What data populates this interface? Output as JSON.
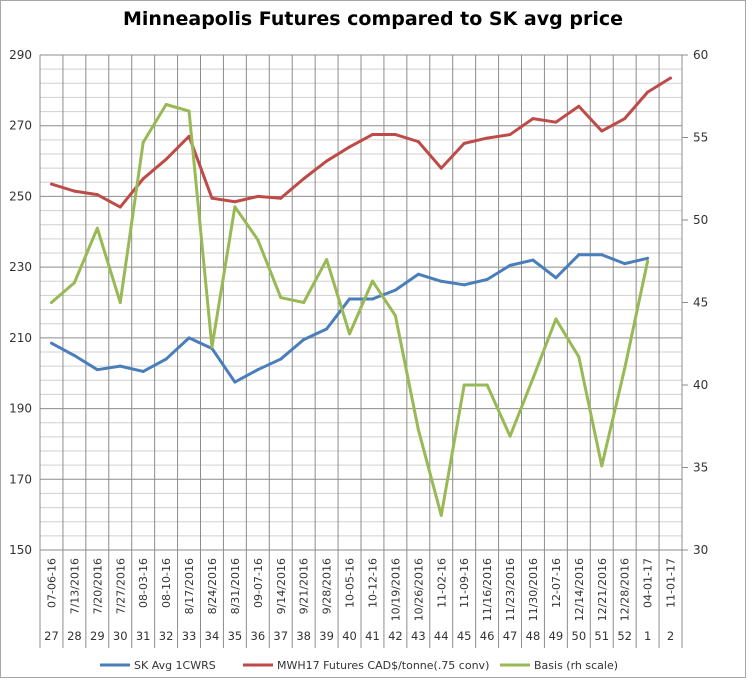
{
  "chart_data": {
    "type": "line",
    "title": "Minneapolis Futures compared to SK avg price",
    "categories": [
      "07-06-16",
      "7/13/2016",
      "7/20/2016",
      "7/27/2016",
      "08-03-16",
      "08-10-16",
      "8/17/2016",
      "8/24/2016",
      "8/31/2016",
      "09-07-16",
      "9/14/2016",
      "9/21/2016",
      "9/28/2016",
      "10-05-16",
      "10-12-16",
      "10/19/2016",
      "10/26/2016",
      "11-02-16",
      "11-09-16",
      "11/16/2016",
      "11/23/2016",
      "11/30/2016",
      "12-07-16",
      "12/14/2016",
      "12/21/2016",
      "12/28/2016",
      "04-01-17",
      "11-01-17"
    ],
    "week_numbers": [
      "27",
      "28",
      "29",
      "30",
      "31",
      "32",
      "33",
      "34",
      "35",
      "36",
      "37",
      "38",
      "39",
      "40",
      "41",
      "42",
      "43",
      "44",
      "45",
      "46",
      "47",
      "48",
      "49",
      "50",
      "51",
      "52",
      "1",
      "2"
    ],
    "y_left": {
      "range": [
        150,
        290
      ],
      "ticks": [
        "150",
        "170",
        "190",
        "210",
        "230",
        "250",
        "270",
        "290"
      ]
    },
    "y_right": {
      "range": [
        30,
        60
      ],
      "ticks": [
        "30",
        "35",
        "40",
        "45",
        "50",
        "55",
        "60"
      ]
    },
    "grid": true,
    "legend_position": "bottom",
    "series": [
      {
        "name": "SK Avg 1CWRS",
        "axis": "left",
        "color": "#4a7ebb",
        "values": [
          208.5,
          205,
          201,
          202,
          200.5,
          204,
          210,
          207,
          197.5,
          201,
          204,
          209.5,
          212.5,
          221,
          221,
          223.5,
          228,
          226,
          225,
          226.5,
          230.5,
          232,
          227,
          233.5,
          233.5,
          231,
          232.5,
          null
        ]
      },
      {
        "name": "MWH17 Futures CAD$/tonne(.75 conv)",
        "axis": "left",
        "color": "#be4b48",
        "values": [
          253.5,
          251.5,
          250.5,
          247,
          255,
          260.5,
          267,
          249.5,
          248.5,
          250,
          249.5,
          255,
          260,
          264,
          267.5,
          267.5,
          265.5,
          258,
          265,
          266.5,
          267.5,
          272,
          271,
          275.5,
          268.5,
          272,
          279.5,
          283.5
        ]
      },
      {
        "name": "Basis (rh scale)",
        "axis": "right",
        "color": "#98b954",
        "values": [
          45,
          46.2,
          49.5,
          45,
          54.7,
          57,
          56.6,
          42.3,
          50.8,
          48.8,
          45.3,
          45,
          47.6,
          43.1,
          46.3,
          44.2,
          37.3,
          32.1,
          40,
          40,
          36.9,
          40.4,
          44,
          41.7,
          35.1,
          41,
          47.5,
          null
        ]
      }
    ]
  }
}
